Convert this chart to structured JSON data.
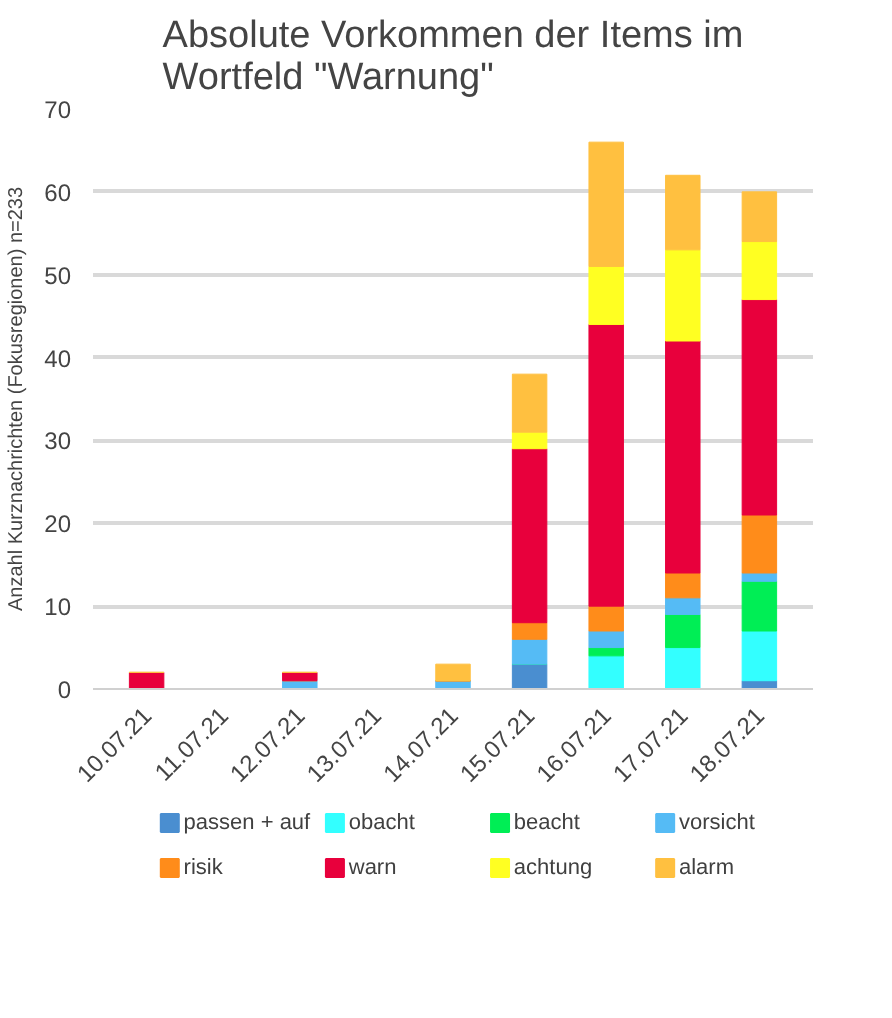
{
  "chart_data": {
    "type": "bar",
    "stacked": true,
    "title": "Absolute Vorkommen der Items im Wortfeld \"Warnung\"",
    "ylabel": "Anzahl Kurznachrichten (Fokusregionen) n=233",
    "categories": [
      "10.07.21",
      "11.07.21",
      "12.07.21",
      "13.07.21",
      "14.07.21",
      "15.07.21",
      "16.07.21",
      "17.07.21",
      "18.07.21"
    ],
    "series": [
      {
        "name": "passen + auf",
        "color": "#4a8ed0",
        "values": [
          0,
          0,
          0,
          0,
          0,
          3,
          0,
          0,
          1
        ]
      },
      {
        "name": "obacht",
        "color": "#33ffff",
        "values": [
          0,
          0,
          0,
          0,
          0,
          0,
          4,
          5,
          6
        ]
      },
      {
        "name": "beacht",
        "color": "#00ee55",
        "values": [
          0,
          0,
          0,
          0,
          0,
          0,
          1,
          4,
          6
        ]
      },
      {
        "name": "vorsicht",
        "color": "#55bbf5",
        "values": [
          0,
          0,
          1,
          0,
          1,
          3,
          2,
          2,
          1
        ]
      },
      {
        "name": "risik",
        "color": "#ff8c1a",
        "values": [
          0,
          0,
          0,
          0,
          0,
          2,
          3,
          3,
          7
        ]
      },
      {
        "name": "warn",
        "color": "#e8003c",
        "values": [
          2,
          0,
          1,
          0,
          0,
          21,
          34,
          28,
          26
        ]
      },
      {
        "name": "achtung",
        "color": "#ffff22",
        "values": [
          0,
          0,
          0,
          0,
          0,
          2,
          7,
          11,
          7
        ]
      },
      {
        "name": "alarm",
        "color": "#ffc040",
        "values": [
          0,
          0,
          0,
          0,
          2,
          7,
          15,
          9,
          6
        ]
      }
    ],
    "ylim": [
      0,
      70
    ],
    "yticks": [
      0,
      10,
      20,
      30,
      40,
      50,
      60,
      70
    ],
    "grid": "y",
    "legend": "bottom"
  }
}
